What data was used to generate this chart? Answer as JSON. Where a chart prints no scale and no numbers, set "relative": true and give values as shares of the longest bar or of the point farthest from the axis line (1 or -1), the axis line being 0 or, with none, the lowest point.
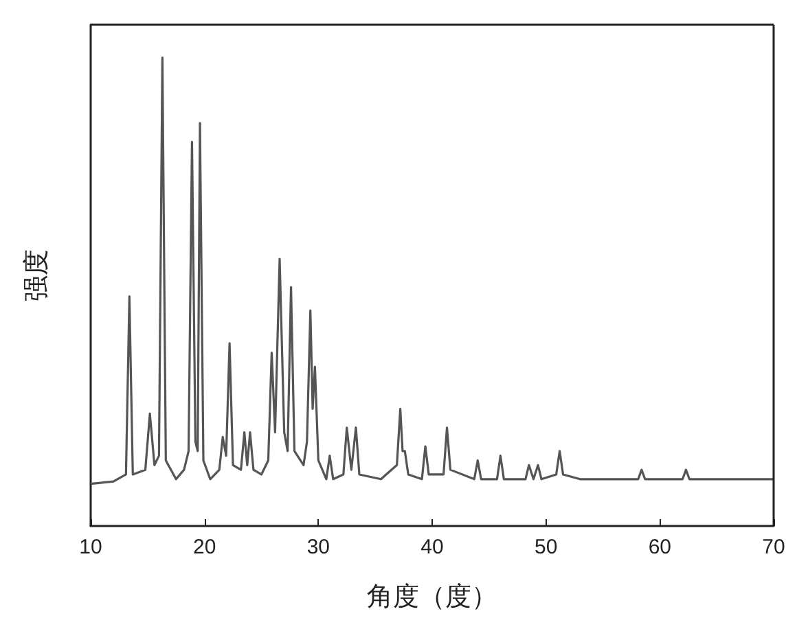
{
  "chart_data": {
    "type": "line",
    "xlabel": "角度（度）",
    "ylabel": "强度",
    "relative": true,
    "xlim": [
      10,
      70
    ],
    "xticks": [
      10,
      20,
      30,
      40,
      50,
      60,
      70
    ],
    "grid": false,
    "marker": "none",
    "line_style": "solid",
    "tick_labels": "x",
    "series": [
      {
        "color": "#555555",
        "x": [
          10,
          12,
          13.1,
          13.4,
          13.7,
          14.8,
          15.2,
          15.6,
          16.0,
          16.3,
          16.6,
          17.5,
          18.2,
          18.6,
          18.9,
          19.2,
          19.4,
          19.6,
          19.9,
          20.5,
          21.3,
          21.6,
          21.9,
          22.2,
          22.5,
          23.2,
          23.5,
          23.75,
          24.0,
          24.3,
          25.0,
          25.6,
          25.9,
          26.2,
          26.6,
          27.0,
          27.3,
          27.6,
          27.9,
          28.7,
          29.0,
          29.3,
          29.5,
          29.7,
          30.0,
          30.7,
          31.0,
          31.3,
          32.2,
          32.5,
          32.9,
          33.3,
          33.6,
          35.5,
          36.9,
          37.2,
          37.4,
          37.6,
          37.9,
          39.1,
          39.4,
          39.7,
          41.0,
          41.3,
          41.6,
          43.7,
          44.0,
          44.3,
          45.7,
          46.0,
          46.3,
          48.2,
          48.5,
          48.9,
          49.3,
          49.6,
          50.9,
          51.2,
          51.5,
          53,
          58.1,
          58.4,
          58.7,
          62.0,
          62.3,
          62.6,
          70
        ],
        "values": [
          0.09,
          0.095,
          0.11,
          0.49,
          0.11,
          0.12,
          0.24,
          0.13,
          0.15,
          1.0,
          0.14,
          0.1,
          0.12,
          0.16,
          0.82,
          0.18,
          0.16,
          0.86,
          0.14,
          0.1,
          0.12,
          0.19,
          0.15,
          0.39,
          0.13,
          0.12,
          0.2,
          0.13,
          0.2,
          0.12,
          0.11,
          0.14,
          0.37,
          0.2,
          0.57,
          0.2,
          0.16,
          0.51,
          0.16,
          0.13,
          0.18,
          0.46,
          0.25,
          0.34,
          0.14,
          0.1,
          0.15,
          0.1,
          0.11,
          0.21,
          0.12,
          0.21,
          0.11,
          0.1,
          0.13,
          0.25,
          0.16,
          0.16,
          0.11,
          0.1,
          0.17,
          0.11,
          0.11,
          0.21,
          0.12,
          0.1,
          0.14,
          0.1,
          0.1,
          0.15,
          0.1,
          0.1,
          0.13,
          0.1,
          0.13,
          0.1,
          0.11,
          0.16,
          0.11,
          0.1,
          0.1,
          0.12,
          0.1,
          0.1,
          0.12,
          0.1,
          0.1
        ]
      }
    ]
  }
}
